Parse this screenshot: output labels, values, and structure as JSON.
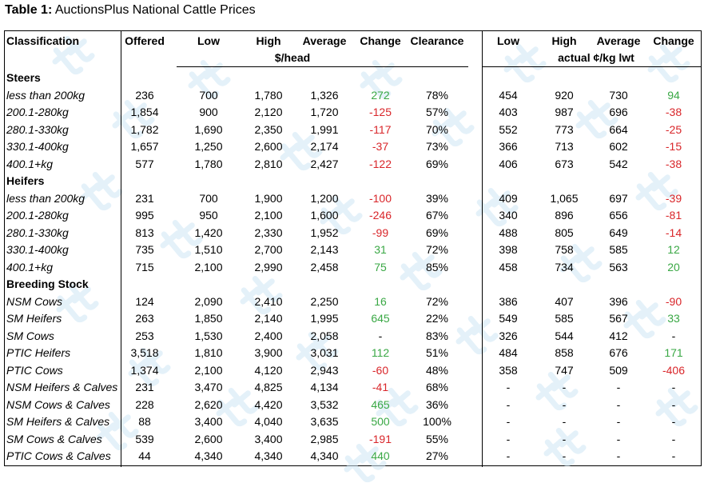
{
  "caption": {
    "number": "Table 1:",
    "title": "AuctionsPlus National Cattle Prices"
  },
  "header": {
    "classification": "Classification",
    "offered": "Offered",
    "low": "Low",
    "high": "High",
    "average": "Average",
    "change": "Change",
    "clearance": "Clearance",
    "per_head": "$/head",
    "r_low": "Low",
    "r_high": "High",
    "r_average": "Average",
    "r_change": "Change",
    "per_kg": "actual ¢/kg lwt"
  },
  "sections": [
    {
      "title": "Steers",
      "rows": [
        {
          "label": "less than 200kg",
          "offered": "236",
          "low": "700",
          "high": "1,780",
          "avg": "1,326",
          "change": "272",
          "clearance": "78%",
          "kg_low": "454",
          "kg_high": "920",
          "kg_avg": "730",
          "kg_change": "94"
        },
        {
          "label": "200.1-280kg",
          "offered": "1,854",
          "low": "900",
          "high": "2,120",
          "avg": "1,720",
          "change": "-125",
          "clearance": "57%",
          "kg_low": "403",
          "kg_high": "987",
          "kg_avg": "696",
          "kg_change": "-38"
        },
        {
          "label": "280.1-330kg",
          "offered": "1,782",
          "low": "1,690",
          "high": "2,350",
          "avg": "1,991",
          "change": "-117",
          "clearance": "70%",
          "kg_low": "552",
          "kg_high": "773",
          "kg_avg": "664",
          "kg_change": "-25"
        },
        {
          "label": "330.1-400kg",
          "offered": "1,657",
          "low": "1,250",
          "high": "2,600",
          "avg": "2,174",
          "change": "-37",
          "clearance": "73%",
          "kg_low": "366",
          "kg_high": "713",
          "kg_avg": "602",
          "kg_change": "-15"
        },
        {
          "label": "400.1+kg",
          "offered": "577",
          "low": "1,780",
          "high": "2,810",
          "avg": "2,427",
          "change": "-122",
          "clearance": "69%",
          "kg_low": "406",
          "kg_high": "673",
          "kg_avg": "542",
          "kg_change": "-38"
        }
      ]
    },
    {
      "title": "Heifers",
      "rows": [
        {
          "label": "less than 200kg",
          "offered": "231",
          "low": "700",
          "high": "1,900",
          "avg": "1,200",
          "change": "-100",
          "clearance": "39%",
          "kg_low": "409",
          "kg_high": "1,065",
          "kg_avg": "697",
          "kg_change": "-39"
        },
        {
          "label": "200.1-280kg",
          "offered": "995",
          "low": "950",
          "high": "2,100",
          "avg": "1,600",
          "change": "-246",
          "clearance": "67%",
          "kg_low": "340",
          "kg_high": "896",
          "kg_avg": "656",
          "kg_change": "-81"
        },
        {
          "label": "280.1-330kg",
          "offered": "813",
          "low": "1,420",
          "high": "2,330",
          "avg": "1,952",
          "change": "-99",
          "clearance": "69%",
          "kg_low": "488",
          "kg_high": "805",
          "kg_avg": "649",
          "kg_change": "-14"
        },
        {
          "label": "330.1-400kg",
          "offered": "735",
          "low": "1,510",
          "high": "2,700",
          "avg": "2,143",
          "change": "31",
          "clearance": "72%",
          "kg_low": "398",
          "kg_high": "758",
          "kg_avg": "585",
          "kg_change": "12"
        },
        {
          "label": "400.1+kg",
          "offered": "715",
          "low": "2,100",
          "high": "2,990",
          "avg": "2,458",
          "change": "75",
          "clearance": "85%",
          "kg_low": "458",
          "kg_high": "734",
          "kg_avg": "563",
          "kg_change": "20"
        }
      ]
    },
    {
      "title": "Breeding Stock",
      "rows": [
        {
          "label": "NSM Cows",
          "offered": "124",
          "low": "2,090",
          "high": "2,410",
          "avg": "2,250",
          "change": "16",
          "clearance": "72%",
          "kg_low": "386",
          "kg_high": "407",
          "kg_avg": "396",
          "kg_change": "-90"
        },
        {
          "label": "SM Heifers",
          "offered": "263",
          "low": "1,850",
          "high": "2,140",
          "avg": "1,995",
          "change": "645",
          "clearance": "22%",
          "kg_low": "549",
          "kg_high": "585",
          "kg_avg": "567",
          "kg_change": "33"
        },
        {
          "label": "SM Cows",
          "offered": "253",
          "low": "1,530",
          "high": "2,400",
          "avg": "2,058",
          "change": "-",
          "clearance": "83%",
          "kg_low": "326",
          "kg_high": "544",
          "kg_avg": "412",
          "kg_change": "-"
        },
        {
          "label": "PTIC Heifers",
          "offered": "3,518",
          "low": "1,810",
          "high": "3,900",
          "avg": "3,031",
          "change": "112",
          "clearance": "51%",
          "kg_low": "484",
          "kg_high": "858",
          "kg_avg": "676",
          "kg_change": "171"
        },
        {
          "label": "PTIC Cows",
          "offered": "1,374",
          "low": "2,100",
          "high": "4,120",
          "avg": "2,943",
          "change": "-60",
          "clearance": "48%",
          "kg_low": "358",
          "kg_high": "747",
          "kg_avg": "509",
          "kg_change": "-406"
        },
        {
          "label": "NSM Heifers & Calves",
          "offered": "231",
          "low": "3,470",
          "high": "4,825",
          "avg": "4,134",
          "change": "-41",
          "clearance": "68%",
          "kg_low": "-",
          "kg_high": "-",
          "kg_avg": "-",
          "kg_change": "-"
        },
        {
          "label": "NSM Cows & Calves",
          "offered": "228",
          "low": "2,620",
          "high": "4,420",
          "avg": "3,532",
          "change": "465",
          "clearance": "36%",
          "kg_low": "-",
          "kg_high": "-",
          "kg_avg": "-",
          "kg_change": "-"
        },
        {
          "label": "SM Heifers & Calves",
          "offered": "88",
          "low": "3,400",
          "high": "4,040",
          "avg": "3,635",
          "change": "500",
          "clearance": "100%",
          "kg_low": "-",
          "kg_high": "-",
          "kg_avg": "-",
          "kg_change": "-"
        },
        {
          "label": "SM Cows & Calves",
          "offered": "539",
          "low": "2,600",
          "high": "3,400",
          "avg": "2,985",
          "change": "-191",
          "clearance": "55%",
          "kg_low": "-",
          "kg_high": "-",
          "kg_avg": "-",
          "kg_change": "-"
        },
        {
          "label": "PTIC Cows & Calves",
          "offered": "44",
          "low": "4,340",
          "high": "4,340",
          "avg": "4,340",
          "change": "440",
          "clearance": "27%",
          "kg_low": "-",
          "kg_high": "-",
          "kg_avg": "-",
          "kg_change": "-"
        }
      ]
    }
  ],
  "colors": {
    "positive": "#3aa845",
    "negative": "#d9262a",
    "watermark": "#cfe6f5"
  },
  "watermark_icon": "auctionsplus-logo"
}
